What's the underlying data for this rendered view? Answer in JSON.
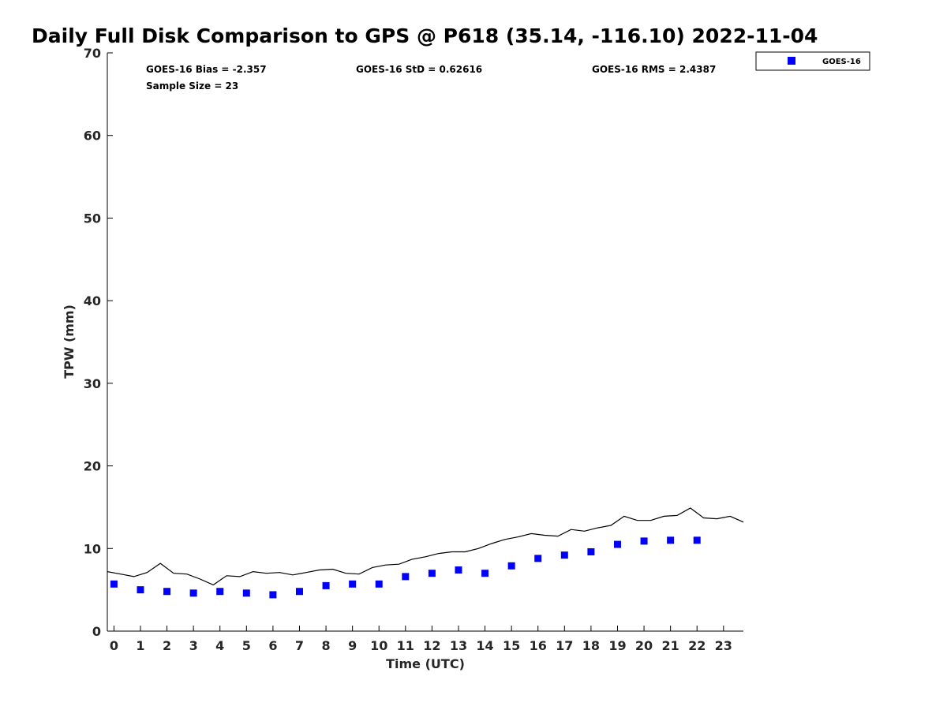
{
  "chart_data": {
    "type": "scatter",
    "title": "Daily Full Disk Comparison to GPS @ P618 (35.14, -116.10) 2022-11-04",
    "xlabel": "Time (UTC)",
    "ylabel": "TPW (mm)",
    "xlim": [
      -0.25,
      23.75
    ],
    "ylim": [
      0,
      70
    ],
    "xticks": [
      0,
      1,
      2,
      3,
      4,
      5,
      6,
      7,
      8,
      9,
      10,
      11,
      12,
      13,
      14,
      15,
      16,
      17,
      18,
      19,
      20,
      21,
      22,
      23
    ],
    "yticks": [
      0,
      10,
      20,
      30,
      40,
      50,
      60,
      70
    ],
    "grid": false,
    "legend": {
      "position": "top-right",
      "entries": [
        "GOES-16"
      ]
    },
    "stats": {
      "bias": "GOES-16 Bias = -2.357",
      "std": "GOES-16 StD = 0.62616",
      "rms": "GOES-16 RMS = 2.4387",
      "sample": "Sample Size = 23"
    },
    "series": [
      {
        "name": "GOES-16",
        "marker": "square",
        "color": "#0000ff",
        "x": [
          0,
          1,
          2,
          3,
          4,
          5,
          6,
          7,
          8,
          9,
          10,
          11,
          12,
          13,
          14,
          15,
          16,
          17,
          18,
          19,
          20,
          21,
          22
        ],
        "y": [
          5.7,
          5.0,
          4.8,
          4.6,
          4.8,
          4.6,
          4.4,
          4.8,
          5.5,
          5.7,
          5.7,
          6.6,
          7.0,
          7.4,
          7.0,
          7.9,
          8.8,
          9.2,
          9.6,
          10.5,
          10.9,
          11.0,
          11.0
        ]
      },
      {
        "marker": "line",
        "color": "#000000",
        "x": [
          -0.25,
          0.25,
          0.75,
          1.25,
          1.75,
          2.25,
          2.75,
          3.25,
          3.75,
          4.25,
          4.75,
          5.25,
          5.75,
          6.25,
          6.75,
          7.25,
          7.75,
          8.25,
          8.75,
          9.25,
          9.75,
          10.25,
          10.75,
          11.25,
          11.75,
          12.25,
          12.75,
          13.25,
          13.75,
          14.25,
          14.75,
          15.25,
          15.75,
          16.25,
          16.75,
          17.25,
          17.75,
          18.25,
          18.75,
          19.25,
          19.75,
          20.25,
          20.75,
          21.25,
          21.75,
          22.25,
          22.75,
          23.25,
          23.75
        ],
        "y": [
          7.2,
          6.9,
          6.6,
          7.1,
          8.2,
          7.0,
          6.9,
          6.3,
          5.6,
          6.7,
          6.6,
          7.2,
          7.0,
          7.1,
          6.8,
          7.1,
          7.4,
          7.5,
          7.0,
          6.9,
          7.7,
          8.0,
          8.1,
          8.7,
          9.0,
          9.4,
          9.6,
          9.6,
          10.0,
          10.6,
          11.1,
          11.4,
          11.8,
          11.6,
          11.5,
          12.3,
          12.1,
          12.5,
          12.8,
          13.9,
          13.4,
          13.4,
          13.9,
          14.0,
          14.9,
          13.7,
          13.6,
          13.9,
          13.2
        ]
      }
    ]
  }
}
